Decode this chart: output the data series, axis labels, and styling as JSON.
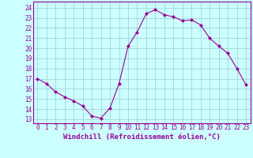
{
  "x": [
    0,
    1,
    2,
    3,
    4,
    5,
    6,
    7,
    8,
    9,
    10,
    11,
    12,
    13,
    14,
    15,
    16,
    17,
    18,
    19,
    20,
    21,
    22,
    23
  ],
  "y": [
    17.0,
    16.5,
    15.7,
    15.2,
    14.8,
    14.3,
    13.3,
    13.1,
    14.1,
    16.5,
    20.2,
    21.6,
    23.4,
    23.8,
    23.3,
    23.1,
    22.7,
    22.8,
    22.3,
    21.0,
    20.2,
    19.5,
    18.0,
    16.4
  ],
  "line_color": "#990099",
  "marker": "D",
  "markersize": 2.0,
  "linewidth": 0.8,
  "bg_color": "#ccffff",
  "grid_color": "#99cccc",
  "xlabel": "Windchill (Refroidissement éolien,°C)",
  "xlabel_color": "#990099",
  "xlabel_fontsize": 6.5,
  "ylabel_ticks": [
    13,
    14,
    15,
    16,
    17,
    18,
    19,
    20,
    21,
    22,
    23,
    24
  ],
  "ylim": [
    12.6,
    24.6
  ],
  "xlim": [
    -0.5,
    23.5
  ],
  "tick_fontsize": 5.5,
  "tick_color": "#990099"
}
